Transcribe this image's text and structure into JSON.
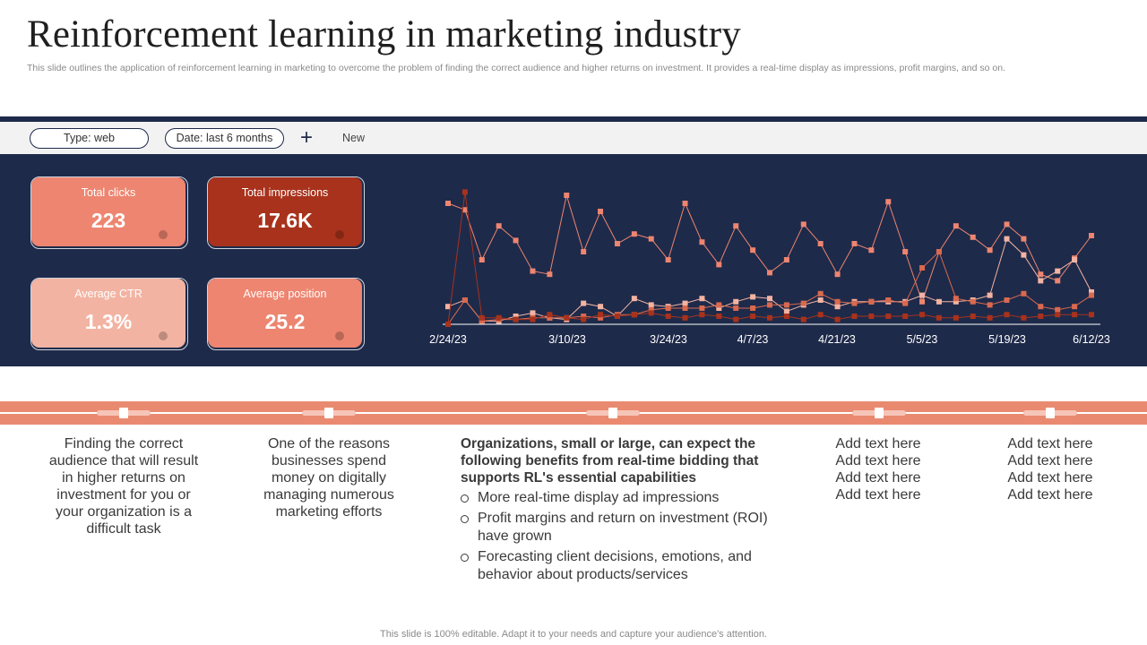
{
  "header": {
    "title": "Reinforcement learning in marketing industry",
    "subtitle": "This slide outlines the application of reinforcement learning in marketing to overcome the problem of finding the correct audience and higher returns on investment. It provides a real-time display as impressions, profit margins, and so on."
  },
  "filters": {
    "type_label": "Type: web",
    "date_label": "Date: last 6 months",
    "add_icon": "plus-icon",
    "new_label": "New"
  },
  "kpis": [
    {
      "label": "Total clicks",
      "value": "223",
      "color": "#ed8570"
    },
    {
      "label": "Total impressions",
      "value": "17.6K",
      "color": "#a8321c"
    },
    {
      "label": "Average CTR",
      "value": "1.3%",
      "color": "#f3b3a2"
    },
    {
      "label": "Average position",
      "value": "25.2",
      "color": "#ed8570"
    }
  ],
  "chart_data": {
    "type": "line",
    "x_tick_labels": [
      "2/24/23",
      "3/10/23",
      "3/24/23",
      "4/7/23",
      "4/21/23",
      "5/5/23",
      "5/19/23",
      "6/12/23"
    ],
    "grid": false,
    "legend": "none",
    "point_count": 39,
    "series": [
      {
        "color": "#ed8570",
        "values": [
          75,
          71,
          40,
          61,
          52,
          33,
          31,
          80,
          45,
          70,
          50,
          56,
          53,
          40,
          75,
          51,
          37,
          61,
          46,
          32,
          40,
          62,
          50,
          31,
          50,
          46,
          76,
          45,
          14,
          45,
          61,
          54,
          46,
          62,
          53,
          31,
          27,
          41,
          55
        ]
      },
      {
        "color": "#f3b3a2",
        "values": [
          11,
          15,
          2,
          2,
          5,
          7,
          4,
          3,
          13,
          11,
          5,
          16,
          12,
          11,
          13,
          16,
          10,
          14,
          17,
          16,
          8,
          12,
          15,
          11,
          14,
          14,
          14,
          14,
          18,
          14,
          14,
          15,
          18,
          53,
          43,
          27,
          33,
          40,
          20
        ]
      },
      {
        "color": "#d9694f",
        "values": [
          0,
          15,
          2,
          3,
          3,
          4,
          4,
          4,
          5,
          4,
          6,
          6,
          9,
          10,
          10,
          10,
          12,
          10,
          10,
          12,
          12,
          13,
          19,
          14,
          13,
          14,
          15,
          13,
          35,
          45,
          16,
          14,
          12,
          15,
          19,
          11,
          9,
          11,
          18
        ]
      },
      {
        "color": "#a8321c",
        "values": [
          0,
          82,
          4,
          4,
          3,
          3,
          6,
          4,
          3,
          6,
          5,
          6,
          7,
          5,
          4,
          6,
          5,
          3,
          5,
          4,
          5,
          3,
          6,
          3,
          5,
          5,
          5,
          5,
          6,
          4,
          4,
          5,
          4,
          6,
          4,
          5,
          6,
          6,
          6
        ]
      }
    ]
  },
  "timeline": {
    "columns": [
      {
        "text": "Finding the correct audience that will result in higher returns on investment for you or your organization is a difficult task"
      },
      {
        "text": "One of the reasons businesses spend money on digitally managing numerous marketing efforts"
      },
      {
        "lead": "Organizations, small or large, can expect the following benefits from real-time bidding that supports RL's essential capabilities",
        "bullets": [
          "More real-time display ad impressions",
          "Profit margins and return on investment (ROI) have grown",
          "Forecasting client decisions, emotions, and behavior about products/services"
        ]
      },
      {
        "lines": [
          "Add text here",
          "Add text here",
          "Add text here",
          "Add text here"
        ]
      },
      {
        "lines": [
          "Add text here",
          "Add text here",
          "Add text here",
          "Add text here"
        ]
      }
    ]
  },
  "footer": "This slide is 100% editable. Adapt it to your needs and capture your audience's attention.",
  "colors": {
    "navy": "#1e2a4a",
    "accent": "#e98a70"
  }
}
